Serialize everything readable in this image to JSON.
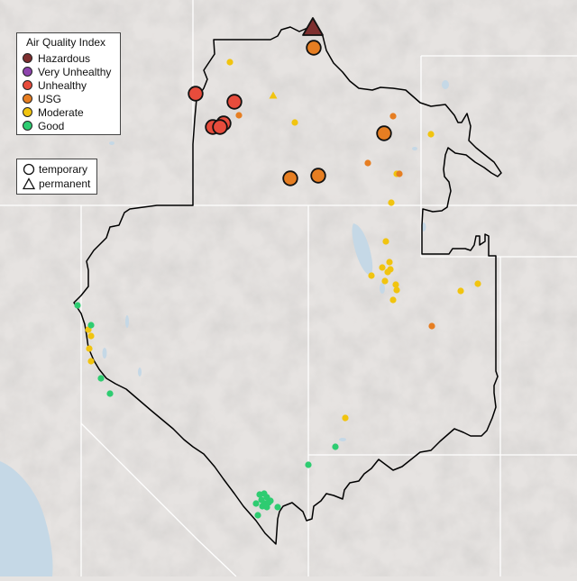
{
  "legend": {
    "title": "Air Quality Index",
    "items": [
      {
        "label": "Hazardous",
        "color": "#7e2f2f"
      },
      {
        "label": "Very Unhealthy",
        "color": "#8e44ad"
      },
      {
        "label": "Unhealthy",
        "color": "#e74c3c"
      },
      {
        "label": "USG",
        "color": "#e67e22"
      },
      {
        "label": "Moderate",
        "color": "#f1c40f"
      },
      {
        "label": "Good",
        "color": "#2ecc71"
      }
    ],
    "types": [
      {
        "label": "temporary",
        "icon": "circle-outline-icon"
      },
      {
        "label": "permanent",
        "icon": "triangle-outline-icon"
      }
    ]
  },
  "map": {
    "land_color": "#e6e3e1",
    "water_color": "#c5d8e6",
    "boundary_color": "#000000",
    "state_line_color": "#ffffff"
  },
  "monitors": [
    {
      "site": "temporary-large",
      "category": "Hazardous",
      "type": "permanent",
      "size": "large"
    },
    {
      "site": "temporary-large",
      "category": "USG",
      "type": "temporary",
      "size": "large"
    },
    {
      "site": "temporary-large",
      "category": "Unhealthy",
      "type": "temporary",
      "size": "large"
    },
    {
      "site": "temporary-large",
      "category": "Unhealthy",
      "type": "temporary",
      "size": "large"
    },
    {
      "site": "temporary-large",
      "category": "Unhealthy",
      "type": "temporary",
      "size": "large"
    },
    {
      "site": "temporary-large",
      "category": "Unhealthy",
      "type": "temporary",
      "size": "large"
    },
    {
      "site": "temporary-large",
      "category": "Unhealthy",
      "type": "temporary",
      "size": "large"
    },
    {
      "site": "temporary-large",
      "category": "USG",
      "type": "temporary",
      "size": "large"
    },
    {
      "site": "temporary-large",
      "category": "USG",
      "type": "temporary",
      "size": "large"
    },
    {
      "site": "temporary-large",
      "category": "USG",
      "type": "temporary",
      "size": "large"
    }
  ]
}
